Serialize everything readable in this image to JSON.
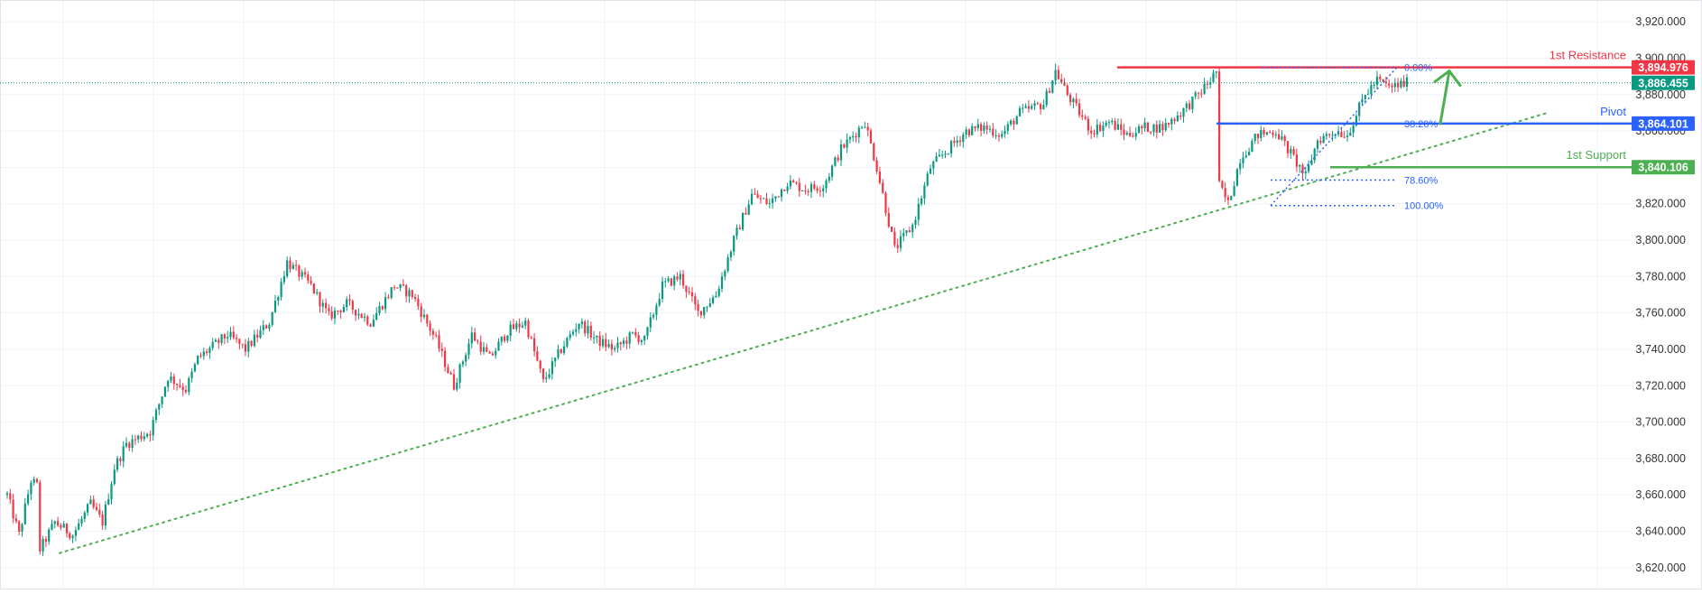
{
  "colors": {
    "up": "#089981",
    "down": "#f23645",
    "resistance": "#f23645",
    "pivot": "#2962ff",
    "support": "#4caf50",
    "trendline": "#4caf50",
    "fib": "#2962ff",
    "current_price_line": "#089981",
    "grid": "#f0f3fa",
    "axis_text": "#333333"
  },
  "chart_data": {
    "type": "candlestick",
    "y_axis_ticks": [
      "3,620.000",
      "3,640.000",
      "3,660.000",
      "3,680.000",
      "3,700.000",
      "3,720.000",
      "3,740.000",
      "3,760.000",
      "3,780.000",
      "3,800.000",
      "3,820.000",
      "3,840.000",
      "3,860.000",
      "3,880.000",
      "3,900.000",
      "3,920.000"
    ],
    "ylim": [
      3608,
      3932
    ],
    "grid": true,
    "price_path": [
      [
        0,
        3660
      ],
      [
        4,
        3638
      ],
      [
        8,
        3668
      ],
      [
        10,
        3665
      ],
      [
        11,
        3630
      ],
      [
        16,
        3645
      ],
      [
        22,
        3638
      ],
      [
        28,
        3655
      ],
      [
        32,
        3645
      ],
      [
        36,
        3675
      ],
      [
        40,
        3688
      ],
      [
        48,
        3695
      ],
      [
        54,
        3725
      ],
      [
        60,
        3718
      ],
      [
        64,
        3735
      ],
      [
        74,
        3748
      ],
      [
        80,
        3740
      ],
      [
        88,
        3755
      ],
      [
        94,
        3788
      ],
      [
        102,
        3775
      ],
      [
        108,
        3758
      ],
      [
        114,
        3765
      ],
      [
        122,
        3755
      ],
      [
        130,
        3775
      ],
      [
        136,
        3770
      ],
      [
        144,
        3745
      ],
      [
        150,
        3720
      ],
      [
        156,
        3748
      ],
      [
        162,
        3735
      ],
      [
        168,
        3750
      ],
      [
        174,
        3755
      ],
      [
        180,
        3722
      ],
      [
        186,
        3740
      ],
      [
        192,
        3755
      ],
      [
        198,
        3745
      ],
      [
        204,
        3740
      ],
      [
        210,
        3748
      ],
      [
        214,
        3745
      ],
      [
        220,
        3775
      ],
      [
        226,
        3780
      ],
      [
        232,
        3760
      ],
      [
        238,
        3770
      ],
      [
        244,
        3800
      ],
      [
        250,
        3825
      ],
      [
        256,
        3820
      ],
      [
        262,
        3832
      ],
      [
        268,
        3828
      ],
      [
        274,
        3830
      ],
      [
        280,
        3850
      ],
      [
        288,
        3865
      ],
      [
        292,
        3840
      ],
      [
        298,
        3795
      ],
      [
        304,
        3808
      ],
      [
        310,
        3840
      ],
      [
        316,
        3850
      ],
      [
        322,
        3860
      ],
      [
        328,
        3862
      ],
      [
        334,
        3858
      ],
      [
        340,
        3870
      ],
      [
        348,
        3875
      ],
      [
        352,
        3893
      ],
      [
        356,
        3880
      ],
      [
        360,
        3870
      ],
      [
        364,
        3860
      ],
      [
        370,
        3865
      ],
      [
        376,
        3858
      ],
      [
        382,
        3862
      ],
      [
        388,
        3862
      ],
      [
        394,
        3870
      ],
      [
        400,
        3880
      ],
      [
        404,
        3888
      ],
      [
        406,
        3893
      ],
      [
        407,
        3830
      ],
      [
        410,
        3820
      ],
      [
        414,
        3845
      ],
      [
        420,
        3858
      ],
      [
        426,
        3860
      ],
      [
        432,
        3845
      ],
      [
        436,
        3835
      ],
      [
        440,
        3855
      ],
      [
        446,
        3860
      ],
      [
        450,
        3858
      ],
      [
        456,
        3880
      ],
      [
        460,
        3888
      ],
      [
        464,
        3884
      ],
      [
        470,
        3886.455
      ]
    ],
    "levels": [
      {
        "label": "1st Resistance",
        "price_label": "3,894.976",
        "price": 3894.976,
        "color": "#f23645"
      },
      {
        "label": "Pivot",
        "price_label": "3,864.101",
        "price": 3864.101,
        "color": "#2962ff"
      },
      {
        "label": "1st Support",
        "price_label": "3,840.106",
        "price": 3840.106,
        "color": "#4caf50"
      }
    ],
    "current_price": {
      "price_label": "3,886.455",
      "price": 3886.455
    },
    "fib_levels": [
      {
        "label": "0.00%",
        "price": 3894.976
      },
      {
        "label": "38.20%",
        "price": 3864.101
      },
      {
        "label": "78.60%",
        "price": 3833.0
      },
      {
        "label": "100.00%",
        "price": 3819.0
      }
    ],
    "trendline": {
      "from": [
        0,
        3628
      ],
      "to": [
        520,
        3870
      ]
    },
    "projection_arrow": {
      "from": [
        466,
        3864
      ],
      "to": [
        472,
        3893
      ]
    }
  }
}
